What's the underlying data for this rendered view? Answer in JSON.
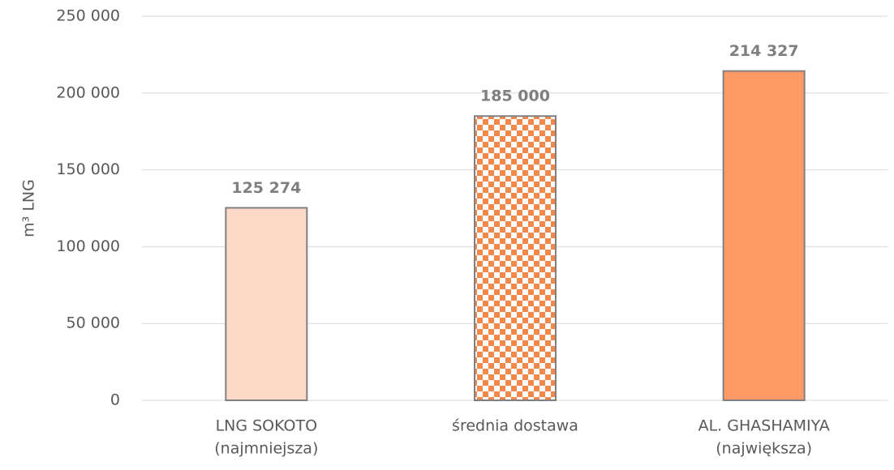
{
  "chart_data": {
    "type": "bar",
    "y_label": "m³ LNG",
    "categories": [
      [
        "LNG SOKOTO",
        "(najmniejsza)"
      ],
      [
        "średnia dostawa"
      ],
      [
        "AL. GHASHAMIYA",
        "(największa)"
      ]
    ],
    "values": [
      125274,
      185000,
      214327
    ],
    "value_labels": [
      "125 274",
      "185 000",
      "214 327"
    ],
    "colors": [
      "#fddac8",
      "#f4884a",
      "#ff9966"
    ],
    "fills": [
      "solid",
      "checker",
      "solid"
    ],
    "edge_color": "#808080",
    "ylim": [
      0,
      250000
    ],
    "yticks": [
      {
        "value": 0,
        "label": "0"
      },
      {
        "value": 50000,
        "label": "50 000"
      },
      {
        "value": 100000,
        "label": "100 000"
      },
      {
        "value": 150000,
        "label": "150 000"
      },
      {
        "value": 200000,
        "label": "200 000"
      },
      {
        "value": 250000,
        "label": "250 000"
      }
    ],
    "grid": true
  }
}
